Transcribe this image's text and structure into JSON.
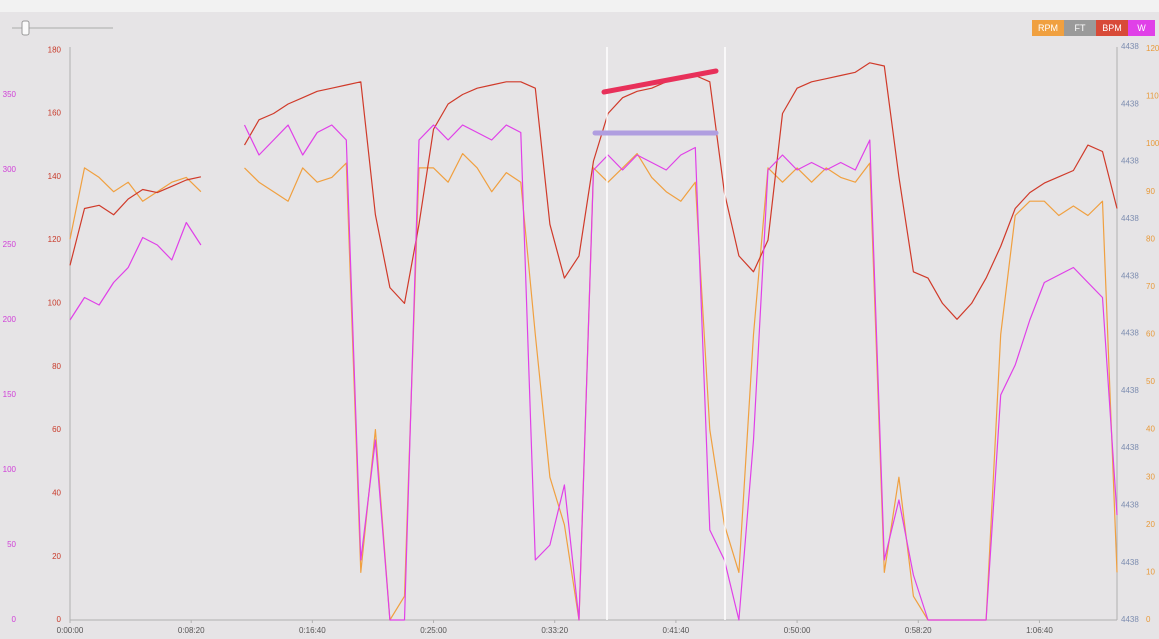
{
  "chart_data": {
    "type": "line",
    "x": [
      0,
      60,
      120,
      180,
      240,
      300,
      360,
      420,
      480,
      540,
      600,
      660,
      720,
      780,
      840,
      900,
      960,
      1020,
      1080,
      1140,
      1200,
      1260,
      1320,
      1380,
      1440,
      1500,
      1560,
      1620,
      1680,
      1740,
      1800,
      1860,
      1920,
      1980,
      2040,
      2100,
      2160,
      2220,
      2280,
      2340,
      2400,
      2460,
      2520,
      2580,
      2640,
      2700,
      2760,
      2820,
      2880,
      2940,
      3000,
      3060,
      3120,
      3180,
      3240,
      3300,
      3360,
      3420,
      3480,
      3540,
      3600,
      3660,
      3720,
      3780,
      3840,
      3900,
      3960,
      4020,
      4080,
      4140,
      4200,
      4260,
      4320
    ],
    "xlim": [
      0,
      4320
    ],
    "xticks": [
      {
        "value": 0,
        "label": "0:00:00"
      },
      {
        "value": 500,
        "label": "0:08:20"
      },
      {
        "value": 1000,
        "label": "0:16:40"
      },
      {
        "value": 1500,
        "label": "0:25:00"
      },
      {
        "value": 2000,
        "label": "0:33:20"
      },
      {
        "value": 2500,
        "label": "0:41:40"
      },
      {
        "value": 3000,
        "label": "0:50:00"
      },
      {
        "value": 3500,
        "label": "0:58:20"
      },
      {
        "value": 4000,
        "label": "1:06:40"
      }
    ],
    "series": [
      {
        "name": "RPM",
        "color": "#f0a040",
        "axis": "right-outer",
        "ylim": [
          0,
          120.4
        ],
        "yticks": [
          0,
          10,
          20,
          30,
          40,
          50,
          60,
          70,
          80,
          90,
          100,
          110,
          120
        ],
        "values": [
          80,
          95,
          93,
          90,
          92,
          88,
          90,
          92,
          93,
          90,
          null,
          null,
          95,
          92,
          90,
          88,
          95,
          92,
          93,
          96,
          10,
          40,
          0,
          5,
          95,
          95,
          92,
          98,
          95,
          90,
          94,
          92,
          60,
          30,
          20,
          0,
          95,
          92,
          95,
          98,
          93,
          90,
          88,
          92,
          40,
          20,
          10,
          60,
          95,
          92,
          95,
          92,
          95,
          93,
          92,
          96,
          10,
          30,
          5,
          0,
          0,
          0,
          0,
          0,
          60,
          85,
          88,
          88,
          85,
          87,
          85,
          88,
          10
        ]
      },
      {
        "name": "FT",
        "color": "#9a9a9a",
        "axis": "right-inner",
        "ylim": [
          4437.6,
          4438.4
        ],
        "yticks": [
          {
            "value": 4437.6,
            "label": "4438"
          },
          {
            "value": 4437.68,
            "label": "4438"
          },
          {
            "value": 4437.76,
            "label": "4438"
          },
          {
            "value": 4437.84,
            "label": "4438"
          },
          {
            "value": 4437.92,
            "label": "4438"
          },
          {
            "value": 4438,
            "label": "4438"
          },
          {
            "value": 4438.08,
            "label": "4438"
          },
          {
            "value": 4438.16,
            "label": "4438"
          },
          {
            "value": 4438.24,
            "label": "4438"
          },
          {
            "value": 4438.32,
            "label": "4438"
          },
          {
            "value": 4438.4,
            "label": "4438"
          }
        ]
      },
      {
        "name": "BPM",
        "color": "#d03a2a",
        "axis": "left-inner",
        "ylim": [
          0,
          181
        ],
        "yticks": [
          0,
          20,
          40,
          60,
          80,
          100,
          120,
          140,
          160,
          180
        ],
        "values": [
          112,
          130,
          131,
          128,
          133,
          136,
          135,
          137,
          139,
          140,
          null,
          null,
          150,
          158,
          160,
          163,
          165,
          167,
          168,
          169,
          170,
          128,
          105,
          100,
          125,
          155,
          163,
          166,
          168,
          169,
          170,
          170,
          168,
          125,
          108,
          115,
          145,
          160,
          165,
          167,
          168,
          170,
          171,
          172,
          170,
          135,
          115,
          110,
          120,
          160,
          168,
          170,
          171,
          172,
          173,
          176,
          175,
          140,
          110,
          108,
          100,
          95,
          100,
          108,
          118,
          130,
          135,
          138,
          140,
          142,
          150,
          148,
          130
        ]
      },
      {
        "name": "W",
        "color": "#e040e8",
        "axis": "left-outer",
        "ylim": [
          0,
          382
        ],
        "yticks": [
          0,
          50,
          100,
          150,
          200,
          250,
          300,
          350
        ],
        "values": [
          200,
          215,
          210,
          225,
          235,
          255,
          250,
          240,
          265,
          250,
          null,
          null,
          330,
          310,
          320,
          330,
          310,
          325,
          330,
          320,
          40,
          120,
          0,
          0,
          320,
          330,
          320,
          330,
          325,
          320,
          330,
          325,
          40,
          50,
          90,
          0,
          300,
          310,
          300,
          310,
          305,
          300,
          310,
          315,
          60,
          40,
          0,
          120,
          300,
          310,
          300,
          305,
          300,
          305,
          300,
          320,
          40,
          80,
          30,
          0,
          0,
          0,
          0,
          0,
          150,
          170,
          200,
          225,
          230,
          235,
          225,
          215,
          70
        ]
      }
    ]
  }
}
